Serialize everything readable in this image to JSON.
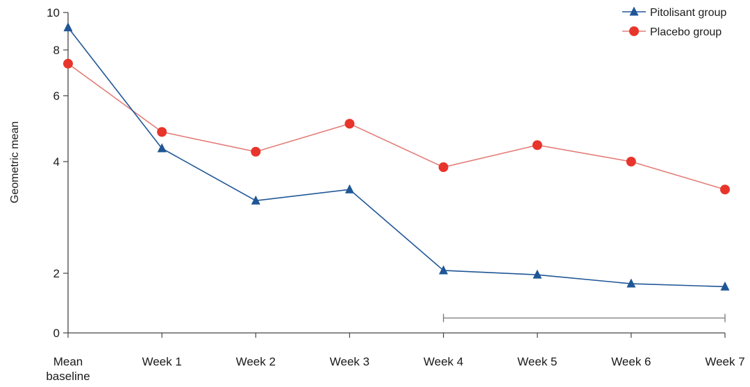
{
  "chart_data": {
    "type": "line",
    "title": "",
    "xlabel": "",
    "ylabel": "Geometric mean",
    "categories": [
      "Mean baseline",
      "Week 1",
      "Week 2",
      "Week 3",
      "Week 4",
      "Week 5",
      "Week 6",
      "Week 7"
    ],
    "category_lines": [
      [
        "Mean",
        "baseline"
      ],
      [
        "Week 1"
      ],
      [
        "Week 2"
      ],
      [
        "Week 3"
      ],
      [
        "Week 4"
      ],
      [
        "Week 5"
      ],
      [
        "Week 6"
      ],
      [
        "Week 7"
      ]
    ],
    "y_ticks": [
      0,
      2,
      4,
      6,
      8,
      10
    ],
    "y_tick_labels": [
      "0",
      "2",
      "4",
      "6",
      "8",
      "10"
    ],
    "ylim": [
      0,
      10
    ],
    "grid": false,
    "legend_position": "top-right",
    "bracket": {
      "from_category": "Week 4",
      "to_category": "Week 7",
      "y": 0.5
    },
    "series": [
      {
        "name": "Pitolisant group",
        "marker": "triangle",
        "color": "#1f5696",
        "values": [
          9.2,
          4.4,
          3.3,
          3.5,
          2.05,
          1.95,
          1.65,
          1.55
        ]
      },
      {
        "name": "Placebo group",
        "marker": "circle",
        "color": "#e8352c",
        "line_color": "#e37d78",
        "values": [
          7.4,
          4.9,
          4.3,
          5.15,
          3.9,
          4.5,
          4.0,
          3.5
        ]
      }
    ]
  }
}
